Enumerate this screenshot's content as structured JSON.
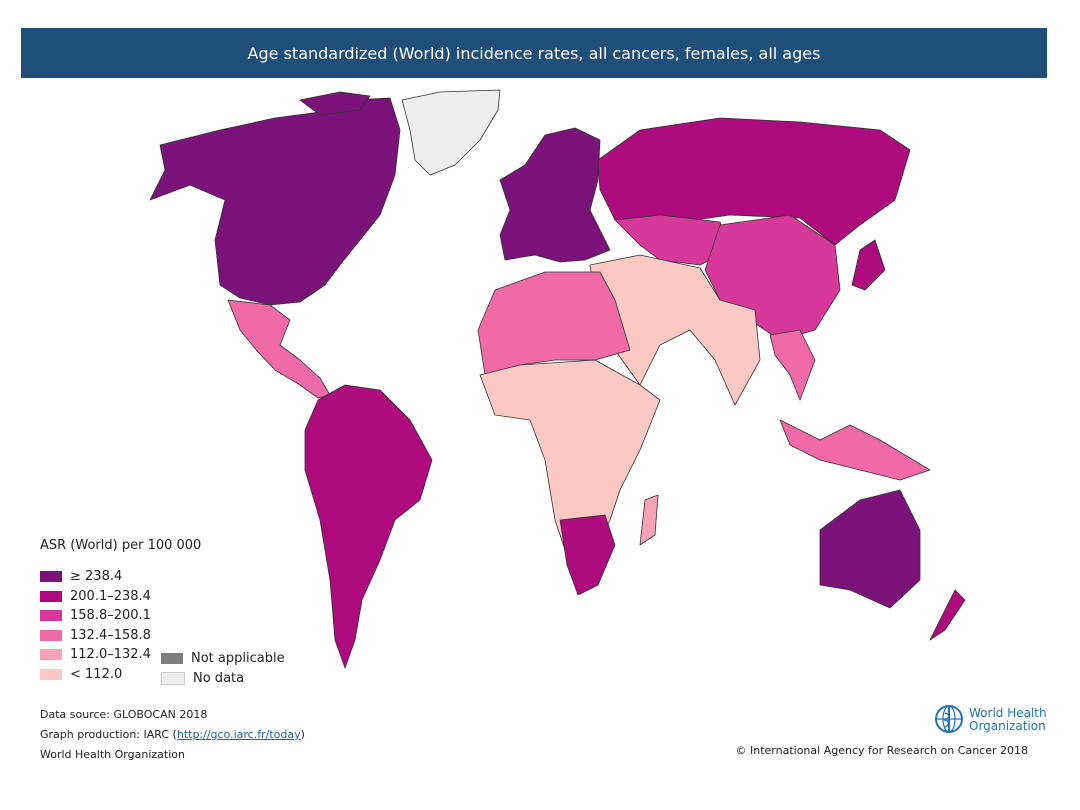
{
  "title": "Age standardized (World) incidence rates, all cancers, females, all ages",
  "legend": {
    "title": "ASR (World) per 100 000",
    "classes": [
      {
        "label": "≥ 238.4",
        "color": "#7b1279"
      },
      {
        "label": "200.1–238.4",
        "color": "#ad0a7e"
      },
      {
        "label": "158.8–200.1",
        "color": "#d6399a"
      },
      {
        "label": "132.4–158.8",
        "color": "#ef6aa7"
      },
      {
        "label": "112.0–132.4",
        "color": "#f7a2b8"
      },
      {
        "label": "< 112.0",
        "color": "#fbc9c3"
      }
    ],
    "extra": [
      {
        "label": "Not applicable",
        "color": "#7f7f7f"
      },
      {
        "label": "No data",
        "color": "#eeeeee"
      }
    ]
  },
  "footer": {
    "source": "Data source: GLOBOCAN 2018",
    "production_prefix": "Graph production: IARC (",
    "production_link": "http://gco.iarc.fr/today",
    "production_suffix": ")",
    "org": "World Health Organization",
    "who_logo_line1": "World Health",
    "who_logo_line2": "Organization",
    "copyright": "© International Agency for Research on Cancer 2018"
  }
}
